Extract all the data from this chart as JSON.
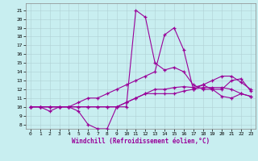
{
  "xlabel": "Windchill (Refroidissement éolien,°C)",
  "background_color": "#c8eef0",
  "line_color": "#990099",
  "grid_color": "#b0d0d4",
  "x_ticks": [
    0,
    1,
    2,
    3,
    4,
    5,
    6,
    7,
    8,
    9,
    10,
    11,
    12,
    13,
    14,
    15,
    16,
    17,
    18,
    19,
    20,
    21,
    22,
    23
  ],
  "y_ticks": [
    8,
    9,
    10,
    11,
    12,
    13,
    14,
    15,
    16,
    17,
    18,
    19,
    20,
    21
  ],
  "ylim": [
    7.5,
    21.8
  ],
  "xlim": [
    -0.5,
    23.5
  ],
  "curves": [
    [
      10.0,
      10.0,
      9.5,
      10.0,
      10.0,
      9.5,
      8.0,
      7.5,
      7.5,
      10.0,
      10.0,
      21.0,
      20.2,
      15.0,
      14.2,
      14.5,
      14.0,
      12.5,
      12.0,
      12.0,
      12.0,
      13.0,
      13.2,
      11.8
    ],
    [
      10.0,
      10.0,
      10.0,
      10.0,
      10.0,
      10.0,
      10.0,
      10.0,
      10.0,
      10.0,
      10.5,
      11.0,
      11.5,
      11.5,
      11.5,
      11.5,
      11.8,
      12.0,
      12.2,
      12.2,
      12.2,
      12.0,
      11.5,
      11.2
    ],
    [
      10.0,
      10.0,
      10.0,
      10.0,
      10.0,
      10.0,
      10.0,
      10.0,
      10.0,
      10.0,
      10.5,
      11.0,
      11.5,
      12.0,
      12.0,
      12.2,
      12.3,
      12.2,
      12.5,
      13.0,
      13.5,
      13.5,
      12.8,
      12.0
    ],
    [
      10.0,
      10.0,
      10.0,
      10.0,
      10.0,
      10.5,
      11.0,
      11.0,
      11.5,
      12.0,
      12.5,
      13.0,
      13.5,
      14.0,
      18.2,
      19.0,
      16.5,
      12.0,
      12.5,
      12.0,
      11.2,
      11.0,
      11.5,
      11.2
    ]
  ]
}
